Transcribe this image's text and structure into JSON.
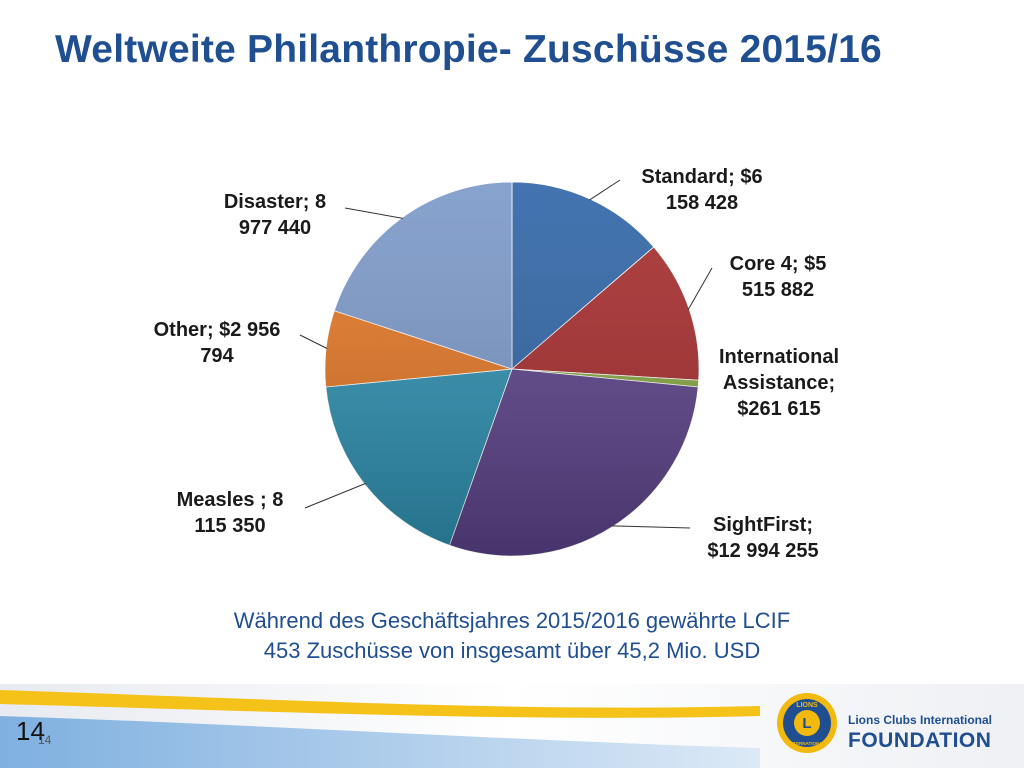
{
  "slide": {
    "title": "Weltweite Philanthropie- Zuschüsse 2015/16",
    "caption_line1": "Während des Geschäftsjahres 2015/2016 gewährte LCIF",
    "caption_line2": "453 Zuschüsse von insgesamt über 45,2 Mio. USD",
    "page_number": "14",
    "page_number_small": "14",
    "logo_text_line1": "Lions Clubs International",
    "logo_text_line2": "FOUNDATION",
    "logo_badge_text": "LIONS",
    "logo_badge_bottom": "INTERNATIONAL",
    "logo_icon": "lions-clubs-emblem-icon"
  },
  "chart_data": {
    "type": "pie",
    "title": "",
    "series": [
      {
        "label": "Standard",
        "value": 6158428,
        "color": "#2e64a6",
        "label_lines": [
          "Standard; $6",
          "158 428"
        ]
      },
      {
        "label": "Core 4",
        "value": 5515882,
        "color": "#a62b2c",
        "label_lines": [
          "Core 4; $5",
          "515 882"
        ]
      },
      {
        "label": "International Assistance",
        "value": 261615,
        "color": "#86a640",
        "label_lines": [
          "International",
          "Assistance;",
          "$261 615"
        ]
      },
      {
        "label": "SightFirst",
        "value": 12994255,
        "color": "#5c428a",
        "label_lines": [
          "SightFirst;",
          "$12 994 255"
        ]
      },
      {
        "label": "Measles",
        "value": 8115350,
        "color": "#2d8fb0",
        "label_lines": [
          "Measles ; 8",
          "115 350"
        ]
      },
      {
        "label": "Other",
        "value": 2956794,
        "color": "#e27624",
        "label_lines": [
          "Other; $2 956",
          "794"
        ]
      },
      {
        "label": "Disaster",
        "value": 8977440,
        "color": "#7a98c8",
        "label_lines": [
          "Disaster; 8",
          "977 440"
        ]
      }
    ],
    "legend": "none",
    "data_labels": "outside-with-leader-lines"
  }
}
